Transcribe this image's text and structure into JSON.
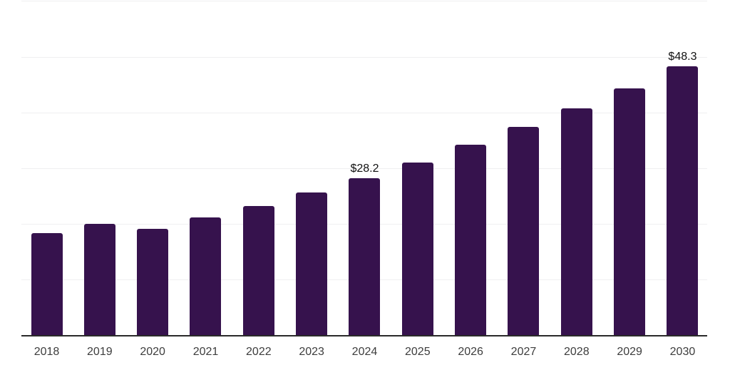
{
  "chart_data": {
    "type": "bar",
    "categories": [
      "2018",
      "2019",
      "2020",
      "2021",
      "2022",
      "2023",
      "2024",
      "2025",
      "2026",
      "2027",
      "2028",
      "2029",
      "2030"
    ],
    "values": [
      18.4,
      20.0,
      19.1,
      21.1,
      23.2,
      25.7,
      28.2,
      31.0,
      34.2,
      37.4,
      40.7,
      44.3,
      48.3
    ],
    "data_labels": [
      {
        "category": "2024",
        "text": "$28.2"
      },
      {
        "category": "2030",
        "text": "$48.3"
      }
    ],
    "title": "",
    "xlabel": "",
    "ylabel": "",
    "ylim": [
      0,
      60
    ],
    "gridline_step": 10,
    "grid": "horizontal",
    "y_tick_labels_visible": false,
    "legend": "none"
  },
  "style": {
    "background_color": "#ffffff",
    "bar_color": "#36124d",
    "gridline_color": "#efeff1",
    "axis_line_color": "#2a2a2a",
    "tick_label_color": "#3d3d3d",
    "data_label_color": "#111111"
  }
}
